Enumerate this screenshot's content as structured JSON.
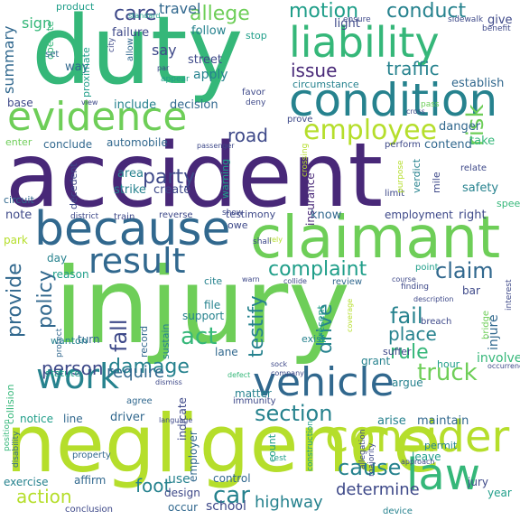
{
  "palette": {
    "purple": "#482878",
    "indigo": "#3e4989",
    "blue": "#31688e",
    "teal": "#26828e",
    "green": "#1f9e89",
    "seagreen": "#35b779",
    "lime": "#6ece58",
    "yellowgreen": "#b5de2b"
  },
  "words": [
    {
      "text": "accident",
      "color": "#482878"
    },
    {
      "text": "injury",
      "color": "#6ece58"
    },
    {
      "text": "duty",
      "color": "#35b779"
    },
    {
      "text": "negligence",
      "color": "#b5de2b"
    },
    {
      "text": "claimant",
      "color": "#6ece58"
    },
    {
      "text": "condition",
      "color": "#26828e"
    },
    {
      "text": "because",
      "color": "#31688e"
    },
    {
      "text": "liability",
      "color": "#35b779"
    },
    {
      "text": "evidence",
      "color": "#6ece58"
    },
    {
      "text": "vehicle",
      "color": "#31688e"
    },
    {
      "text": "result",
      "color": "#31688e"
    },
    {
      "text": "law",
      "color": "#35b779"
    },
    {
      "text": "work",
      "color": "#26828e"
    },
    {
      "text": "employee",
      "color": "#b5de2b"
    },
    {
      "text": "motion",
      "color": "#1f9e89"
    },
    {
      "text": "conduct",
      "color": "#26828e"
    },
    {
      "text": "allege",
      "color": "#6ece58"
    },
    {
      "text": "care",
      "color": "#3e4989"
    },
    {
      "text": "complaint",
      "color": "#1f9e89"
    },
    {
      "text": "claim",
      "color": "#31688e"
    },
    {
      "text": "section",
      "color": "#26828e"
    },
    {
      "text": "truck",
      "color": "#6ece58"
    },
    {
      "text": "consider",
      "color": "#b5de2b"
    },
    {
      "text": "issue",
      "color": "#482878"
    },
    {
      "text": "traffic",
      "color": "#26828e"
    },
    {
      "text": "fall",
      "color": "#3e4989"
    },
    {
      "text": "policy",
      "color": "#31688e"
    },
    {
      "text": "provide",
      "color": "#31688e"
    },
    {
      "text": "fail",
      "color": "#26828e"
    },
    {
      "text": "place",
      "color": "#26828e"
    },
    {
      "text": "act",
      "color": "#35b779"
    },
    {
      "text": "damage",
      "color": "#26828e"
    },
    {
      "text": "person",
      "color": "#3e4989"
    },
    {
      "text": "require",
      "color": "#31688e"
    },
    {
      "text": "rule",
      "color": "#35b779"
    },
    {
      "text": "risk",
      "color": "#6ece58"
    },
    {
      "text": "road",
      "color": "#3e4989"
    },
    {
      "text": "party",
      "color": "#3e4989"
    },
    {
      "text": "cause",
      "color": "#26828e"
    },
    {
      "text": "action",
      "color": "#b5de2b"
    },
    {
      "text": "foot",
      "color": "#26828e"
    },
    {
      "text": "car",
      "color": "#26828e"
    },
    {
      "text": "highway",
      "color": "#26828e"
    },
    {
      "text": "determine",
      "color": "#3e4989"
    },
    {
      "text": "drive",
      "color": "#26828e"
    },
    {
      "text": "testify",
      "color": "#26828e"
    },
    {
      "text": "summary",
      "color": "#31688e"
    },
    {
      "text": "sign",
      "color": "#35b779"
    },
    {
      "text": "product",
      "color": "#1f9e89"
    },
    {
      "text": "travel",
      "color": "#31688e"
    },
    {
      "text": "failure",
      "color": "#3e4989"
    },
    {
      "text": "follow",
      "color": "#26828e"
    },
    {
      "text": "light",
      "color": "#3e4989"
    },
    {
      "text": "stop",
      "color": "#1f9e89"
    },
    {
      "text": "say",
      "color": "#3e4989"
    },
    {
      "text": "give",
      "color": "#3e4989"
    },
    {
      "text": "street",
      "color": "#3e4989"
    },
    {
      "text": "apply",
      "color": "#26828e"
    },
    {
      "text": "circumstance",
      "color": "#26828e"
    },
    {
      "text": "establish",
      "color": "#31688e"
    },
    {
      "text": "base",
      "color": "#3e4989"
    },
    {
      "text": "way",
      "color": "#31688e"
    },
    {
      "text": "include",
      "color": "#26828e"
    },
    {
      "text": "decision",
      "color": "#31688e"
    },
    {
      "text": "operate",
      "color": "#35b779"
    },
    {
      "text": "proximate",
      "color": "#1f9e89"
    },
    {
      "text": "danger",
      "color": "#31688e"
    },
    {
      "text": "take",
      "color": "#35b779"
    },
    {
      "text": "conclude",
      "color": "#31688e"
    },
    {
      "text": "automobile",
      "color": "#31688e"
    },
    {
      "text": "contend",
      "color": "#31688e"
    },
    {
      "text": "enter",
      "color": "#6ece58"
    },
    {
      "text": "perform",
      "color": "#3e4989"
    },
    {
      "text": "decedent",
      "color": "#3e4989"
    },
    {
      "text": "area",
      "color": "#26828e"
    },
    {
      "text": "strike",
      "color": "#26828e"
    },
    {
      "text": "create",
      "color": "#3e4989"
    },
    {
      "text": "warning",
      "color": "#1f9e89"
    },
    {
      "text": "insurance",
      "color": "#482878"
    },
    {
      "text": "verdict",
      "color": "#26828e"
    },
    {
      "text": "mile",
      "color": "#3e4989"
    },
    {
      "text": "safety",
      "color": "#26828e"
    },
    {
      "text": "employment",
      "color": "#3e4989"
    },
    {
      "text": "right",
      "color": "#3e4989"
    },
    {
      "text": "know",
      "color": "#31688e"
    },
    {
      "text": "testimony",
      "color": "#3e4989"
    },
    {
      "text": "owe",
      "color": "#3e4989"
    },
    {
      "text": "note",
      "color": "#3e4989"
    },
    {
      "text": "circuit",
      "color": "#31688e"
    },
    {
      "text": "park",
      "color": "#b5de2b"
    },
    {
      "text": "day",
      "color": "#26828e"
    },
    {
      "text": "reason",
      "color": "#1f9e89"
    },
    {
      "text": "cite",
      "color": "#26828e"
    },
    {
      "text": "file",
      "color": "#26828e"
    },
    {
      "text": "support",
      "color": "#26828e"
    },
    {
      "text": "turn",
      "color": "#31688e"
    },
    {
      "text": "record",
      "color": "#31688e"
    },
    {
      "text": "sustain",
      "color": "#26828e"
    },
    {
      "text": "lane",
      "color": "#31688e"
    },
    {
      "text": "exist",
      "color": "#26828e"
    },
    {
      "text": "present",
      "color": "#1f9e89"
    },
    {
      "text": "grant",
      "color": "#26828e"
    },
    {
      "text": "argue",
      "color": "#26828e"
    },
    {
      "text": "involve",
      "color": "#35b779"
    },
    {
      "text": "injure",
      "color": "#31688e"
    },
    {
      "text": "suffer",
      "color": "#3e4989"
    },
    {
      "text": "wanton",
      "color": "#26828e"
    },
    {
      "text": "statute",
      "color": "#1f9e89"
    },
    {
      "text": "collision",
      "color": "#35b779"
    },
    {
      "text": "notice",
      "color": "#1f9e89"
    },
    {
      "text": "line",
      "color": "#31688e"
    },
    {
      "text": "driver",
      "color": "#31688e"
    },
    {
      "text": "matter",
      "color": "#26828e"
    },
    {
      "text": "indicate",
      "color": "#3e4989"
    },
    {
      "text": "arise",
      "color": "#26828e"
    },
    {
      "text": "maintain",
      "color": "#31688e"
    },
    {
      "text": "employer",
      "color": "#31688e"
    },
    {
      "text": "count",
      "color": "#1f9e89"
    },
    {
      "text": "leave",
      "color": "#1f9e89"
    },
    {
      "text": "permit",
      "color": "#26828e"
    },
    {
      "text": "exercise",
      "color": "#26828e"
    },
    {
      "text": "affirm",
      "color": "#31688e"
    },
    {
      "text": "use",
      "color": "#26828e"
    },
    {
      "text": "control",
      "color": "#31688e"
    },
    {
      "text": "design",
      "color": "#3e4989"
    },
    {
      "text": "occur",
      "color": "#31688e"
    },
    {
      "text": "school",
      "color": "#3e4989"
    },
    {
      "text": "jury",
      "color": "#3e4989"
    },
    {
      "text": "year",
      "color": "#1f9e89"
    },
    {
      "text": "property",
      "color": "#31688e"
    },
    {
      "text": "bar",
      "color": "#3e4989"
    },
    {
      "text": "speed",
      "color": "#35b779"
    },
    {
      "text": "limit",
      "color": "#3e4989"
    },
    {
      "text": "relate",
      "color": "#3e4989"
    },
    {
      "text": "hour",
      "color": "#1f9e89"
    },
    {
      "text": "bridge",
      "color": "#6ece58"
    },
    {
      "text": "breach",
      "color": "#3e4989"
    },
    {
      "text": "point",
      "color": "#1f9e89"
    },
    {
      "text": "review",
      "color": "#31688e"
    },
    {
      "text": "interest",
      "color": "#3e4989"
    },
    {
      "text": "conclusion",
      "color": "#3e4989"
    },
    {
      "text": "device",
      "color": "#26828e"
    },
    {
      "text": "construction",
      "color": "#1f9e89"
    },
    {
      "text": "majority",
      "color": "#3e4989"
    },
    {
      "text": "allegation",
      "color": "#3e4989"
    },
    {
      "text": "test",
      "color": "#1f9e89"
    },
    {
      "text": "immunity",
      "color": "#3e4989"
    },
    {
      "text": "agree",
      "color": "#31688e"
    },
    {
      "text": "position",
      "color": "#35b779"
    },
    {
      "text": "disability",
      "color": "#31688e"
    },
    {
      "text": "protect",
      "color": "#31688e"
    },
    {
      "text": "district",
      "color": "#3e4989"
    },
    {
      "text": "train",
      "color": "#3e4989"
    },
    {
      "text": "reverse",
      "color": "#3e4989"
    },
    {
      "text": "show",
      "color": "#3e4989"
    },
    {
      "text": "shall",
      "color": "#3e4989"
    },
    {
      "text": "crossing",
      "color": "#b5de2b"
    },
    {
      "text": "purpose",
      "color": "#b5de2b"
    },
    {
      "text": "prove",
      "color": "#3e4989"
    },
    {
      "text": "favor",
      "color": "#3e4989"
    },
    {
      "text": "deny",
      "color": "#3e4989"
    },
    {
      "text": "appear",
      "color": "#1f9e89"
    },
    {
      "text": "pass",
      "color": "#6ece58"
    },
    {
      "text": "set",
      "color": "#31688e"
    },
    {
      "text": "allow",
      "color": "#31688e"
    },
    {
      "text": "city",
      "color": "#3e4989"
    },
    {
      "text": "ensure",
      "color": "#3e4989"
    },
    {
      "text": "benefit",
      "color": "#3e4989"
    },
    {
      "text": "sidewalk",
      "color": "#3e4989"
    },
    {
      "text": "standard",
      "color": "#1f9e89"
    },
    {
      "text": "passenger",
      "color": "#3e4989"
    },
    {
      "text": "view",
      "color": "#3e4989"
    },
    {
      "text": "finding",
      "color": "#3e4989"
    },
    {
      "text": "rely",
      "color": "#b5de2b"
    },
    {
      "text": "sock",
      "color": "#3e4989"
    },
    {
      "text": "company",
      "color": "#3e4989"
    },
    {
      "text": "defect",
      "color": "#35b779"
    },
    {
      "text": "dismiss",
      "color": "#3e4989"
    },
    {
      "text": "language",
      "color": "#3e4989"
    },
    {
      "text": "approach",
      "color": "#3e4989"
    },
    {
      "text": "description",
      "color": "#3e4989"
    },
    {
      "text": "occurrence",
      "color": "#3e4989"
    },
    {
      "text": "coverage",
      "color": "#b5de2b"
    },
    {
      "text": "course",
      "color": "#3e4989"
    },
    {
      "text": "warn",
      "color": "#3e4989"
    },
    {
      "text": "collide",
      "color": "#3e4989"
    },
    {
      "text": "cross",
      "color": "#3e4989"
    },
    {
      "text": "par",
      "color": "#3e4989"
    }
  ]
}
